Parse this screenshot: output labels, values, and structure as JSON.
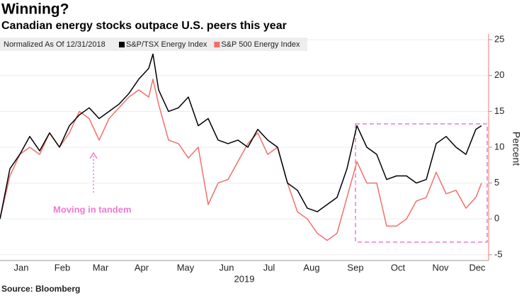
{
  "chart_data": {
    "type": "line",
    "title": "Winning?",
    "subtitle": "Canadian energy stocks outpace U.S. peers this year",
    "note": "Normalized As Of 12/31/2018",
    "y_label": "Percent",
    "x_label": "2019",
    "annotation": "Moving in tandem",
    "source": "Source: Bloomberg",
    "x": [
      0,
      7,
      14,
      21,
      28,
      35,
      42,
      49,
      56,
      63,
      70,
      77,
      84,
      91,
      98,
      105,
      108,
      112,
      119,
      126,
      133,
      140,
      147,
      154,
      161,
      168,
      175,
      182,
      189,
      196,
      203,
      210,
      217,
      224,
      231,
      238,
      245,
      252,
      259,
      266,
      273,
      280,
      287,
      294,
      301,
      308,
      315,
      322,
      329,
      336,
      340
    ],
    "series": [
      {
        "name": "S&P/TSX Energy Index",
        "color": "#000000",
        "values": [
          0,
          7,
          9,
          11.5,
          9.5,
          12,
          10,
          13,
          14.5,
          15.5,
          14,
          15,
          16,
          17.5,
          19.5,
          21,
          23,
          18,
          15,
          15.5,
          17,
          13,
          14,
          11,
          10.5,
          11,
          10,
          12.5,
          11,
          10,
          5,
          4,
          1.5,
          1,
          2,
          3,
          7,
          13,
          10,
          9,
          5.5,
          6,
          6,
          5,
          5.5,
          10.5,
          11.5,
          10,
          9,
          12.5,
          13
        ]
      },
      {
        "name": "S&P 500 Energy Index",
        "color": "#f0706a",
        "values": [
          0,
          6,
          9,
          10,
          9,
          12,
          10,
          12,
          15,
          14,
          11,
          14,
          15.5,
          17,
          18,
          17,
          19.5,
          16,
          11,
          10.5,
          8.5,
          10,
          2,
          5,
          5.5,
          8,
          10.5,
          12,
          9,
          10,
          5,
          1,
          0,
          -2,
          -3,
          -2,
          3,
          8,
          5,
          5,
          -1,
          -1,
          0,
          2.5,
          3,
          6.5,
          3.5,
          4,
          1.5,
          3,
          5
        ]
      }
    ],
    "xlim": [
      0,
      345
    ],
    "xticks": [
      {
        "value": 15,
        "label": "Jan"
      },
      {
        "value": 44,
        "label": "Feb"
      },
      {
        "value": 71,
        "label": "Mar"
      },
      {
        "value": 100,
        "label": "Apr"
      },
      {
        "value": 131,
        "label": "May"
      },
      {
        "value": 160,
        "label": "Jun"
      },
      {
        "value": 190,
        "label": "Jul"
      },
      {
        "value": 220,
        "label": "Aug"
      },
      {
        "value": 251,
        "label": "Sep"
      },
      {
        "value": 281,
        "label": "Oct"
      },
      {
        "value": 311,
        "label": "Nov"
      },
      {
        "value": 337,
        "label": "Dec"
      }
    ],
    "ylim": [
      -5.8,
      25.8
    ],
    "yticks": [
      -5,
      0,
      5,
      10,
      15,
      20,
      25
    ],
    "grid": true
  }
}
